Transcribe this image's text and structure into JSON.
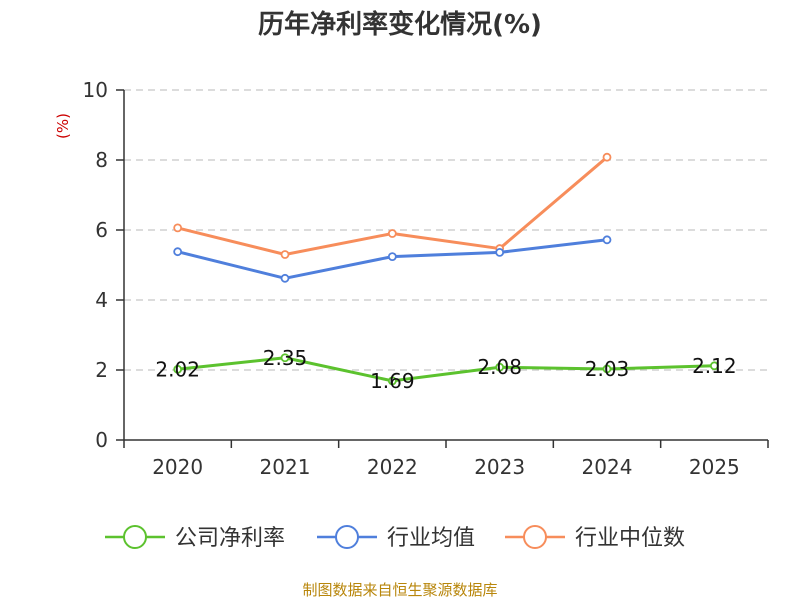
{
  "chart_data": {
    "type": "line",
    "title": "历年净利率变化情况(%)",
    "ylabel": "(%)",
    "categories": [
      "2020",
      "2021",
      "2022",
      "2023",
      "2024",
      "2025"
    ],
    "ylim": [
      0,
      10
    ],
    "yticks": [
      0,
      2,
      4,
      6,
      8,
      10
    ],
    "grid": true,
    "legend": "bottom",
    "series": [
      {
        "name": "公司净利率",
        "color": "#5cc22e",
        "values": [
          2.02,
          2.35,
          1.69,
          2.08,
          2.03,
          2.12
        ],
        "labels": [
          "2.02",
          "2.35",
          "1.69",
          "2.08",
          "2.03",
          "2.12"
        ]
      },
      {
        "name": "行业均值",
        "color": "#4f7fdc",
        "values": [
          5.38,
          4.62,
          5.24,
          5.36,
          5.72,
          null
        ]
      },
      {
        "name": "行业中位数",
        "color": "#f78d5b",
        "values": [
          6.06,
          5.3,
          5.9,
          5.47,
          8.08,
          null
        ]
      }
    ]
  },
  "source": "制图数据来自恒生聚源数据库"
}
